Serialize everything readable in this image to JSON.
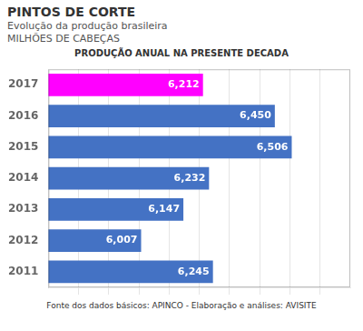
{
  "chart_data": {
    "type": "bar",
    "orientation": "horizontal",
    "title": "PINTOS DE CORTE",
    "subtitle": [
      "Evolução da produção brasileira",
      "MILHÕES DE CABEÇAS"
    ],
    "annotations": [
      "PRODUÇÃO ANUAL NA PRESENTE DECADA",
      "Fonte dos dados básicos: APINCO - Elaboração e análises: AVISITE"
    ],
    "categories": [
      "2011",
      "2012",
      "2013",
      "2014",
      "2015",
      "2016",
      "2017"
    ],
    "values": [
      6245,
      6007,
      6147,
      6232,
      6506,
      6450,
      6212
    ],
    "value_labels": [
      "6,245",
      "6,007",
      "6,147",
      "6,232",
      "6,506",
      "6,450",
      "6,212"
    ],
    "colors": [
      "#4472c4",
      "#4472c4",
      "#4472c4",
      "#4472c4",
      "#4472c4",
      "#4472c4",
      "#ff00ff"
    ],
    "data_labels": true,
    "xlim": [
      5700,
      6700
    ],
    "xticks": [
      5800,
      5900,
      6000,
      6100,
      6200,
      6300,
      6400,
      6500,
      6600
    ],
    "grid": true,
    "tick_labels": "y"
  }
}
